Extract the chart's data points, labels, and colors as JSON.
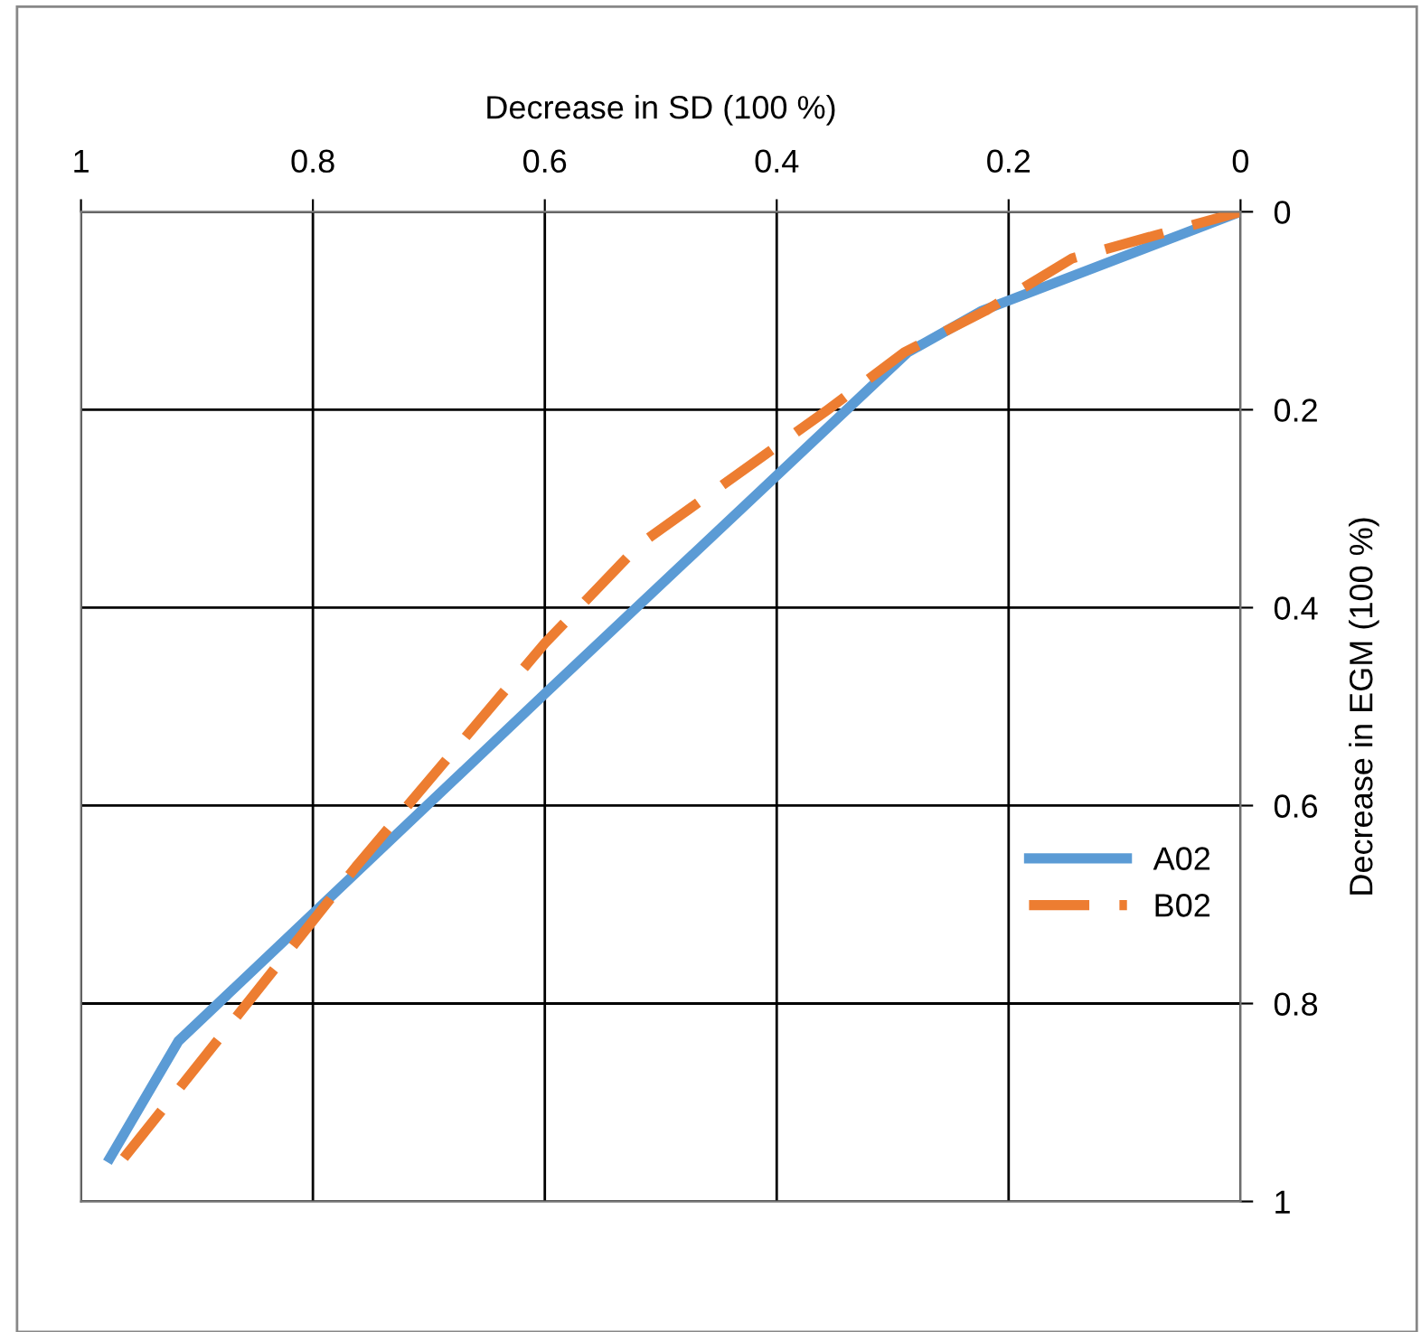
{
  "chart_data": {
    "type": "line",
    "xlabel": "Decrease in SD (100 %)",
    "ylabel": "Decrease in EGM (100 %)",
    "xlim": [
      1,
      0
    ],
    "ylim": [
      1,
      0
    ],
    "xticks": [
      1,
      0.8,
      0.6,
      0.4,
      0.2,
      0
    ],
    "yticks": [
      0,
      0.2,
      0.4,
      0.6,
      0.8,
      1
    ],
    "grid": true,
    "legend": "right",
    "marker": "none",
    "series": [
      {
        "name": "A02",
        "color": "#5b9bd5",
        "line_style": "solid",
        "x": [
          0.975,
          0.916,
          0.6,
          0.287,
          0.223,
          0
        ],
        "values": [
          0.956,
          0.838,
          0.487,
          0.142,
          0.1,
          0
        ]
      },
      {
        "name": "B02",
        "color": "#ed7d31",
        "line_style": "dashed",
        "x": [
          0.963,
          0.763,
          0.6,
          0.518,
          0.356,
          0.29,
          0.22,
          0.145,
          0
        ],
        "values": [
          0.956,
          0.662,
          0.436,
          0.336,
          0.2,
          0.142,
          0.1,
          0.047,
          0
        ]
      }
    ]
  }
}
